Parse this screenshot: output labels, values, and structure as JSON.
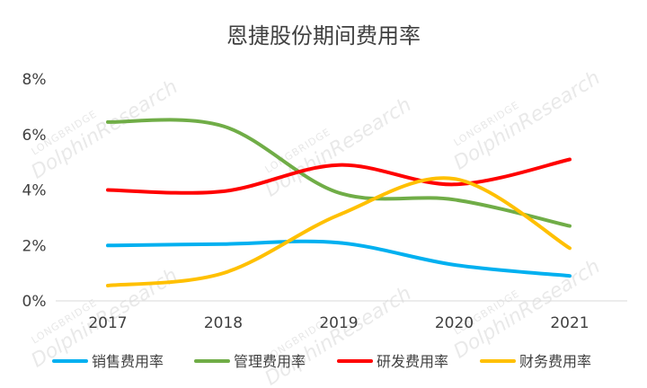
{
  "chart_data": {
    "type": "line",
    "title": "恩捷股份期间费用率",
    "x": [
      "2017",
      "2018",
      "2019",
      "2020",
      "2021"
    ],
    "y_ticks": [
      "0%",
      "2%",
      "4%",
      "6%",
      "8%"
    ],
    "ylim": [
      0,
      8
    ],
    "y_unit": "%",
    "grid": false,
    "smooth": true,
    "legend_position": "bottom",
    "series": [
      {
        "name": "销售费用率",
        "color": "#00b0f0",
        "values": [
          2.0,
          2.05,
          2.1,
          1.3,
          0.9
        ]
      },
      {
        "name": "管理费用率",
        "color": "#70ad47",
        "values": [
          6.45,
          6.3,
          3.9,
          3.65,
          2.7
        ]
      },
      {
        "name": "研发费用率",
        "color": "#ff0000",
        "values": [
          4.0,
          3.95,
          4.9,
          4.2,
          5.1
        ]
      },
      {
        "name": "财务费用率",
        "color": "#ffc000",
        "values": [
          0.55,
          1.0,
          3.1,
          4.4,
          1.9
        ]
      }
    ]
  },
  "watermark": {
    "brand": "DolphinResearch",
    "sub": "LONGBRIDGE"
  }
}
